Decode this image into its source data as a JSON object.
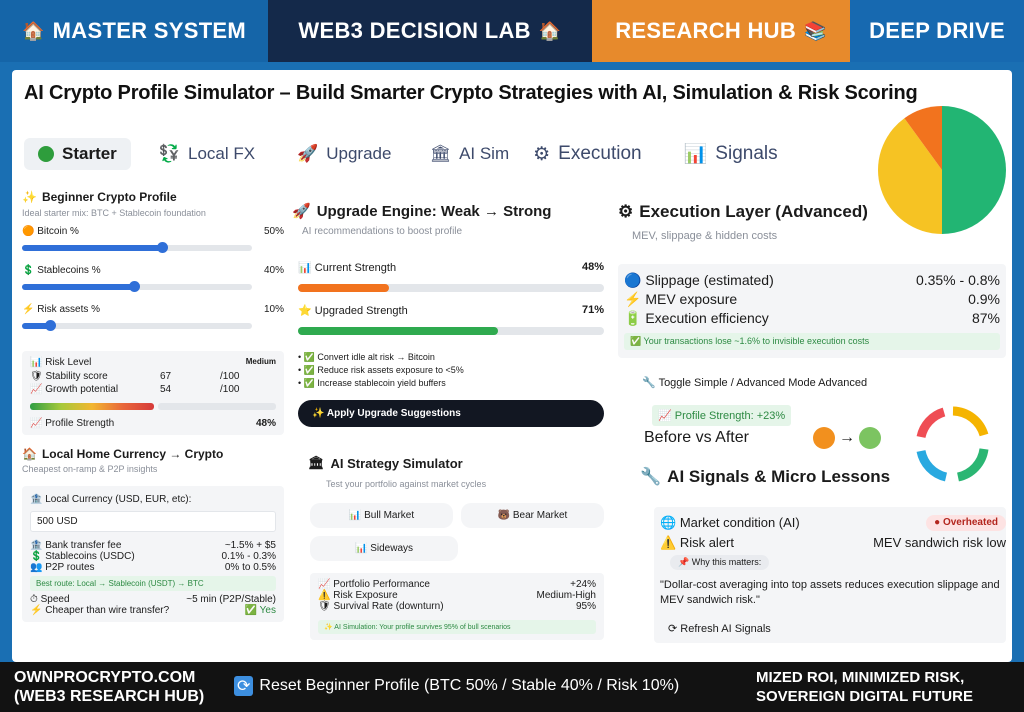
{
  "nav": {
    "tabs": [
      {
        "label": "MASTER SYSTEM",
        "icon": "home-icon"
      },
      {
        "label": "WEB3 DECISION LAB",
        "icon": "home-icon"
      },
      {
        "label": "RESEARCH HUB",
        "icon": "book-icon"
      },
      {
        "label": "DEEP DRIVE"
      }
    ],
    "colors": {
      "bg": "#0f2d4f",
      "active": "#e78a2c"
    }
  },
  "page": {
    "title": "AI Crypto Profile Simulator – Build Smarter Crypto Strategies with AI, Simulation & Risk Scoring"
  },
  "subtabs": [
    "Starter",
    "Local FX",
    "Upgrade",
    "AI Sim",
    "Execution",
    "Signals"
  ],
  "pie_chart": {
    "slices": [
      {
        "label": "Bitcoin %",
        "value": 50,
        "color": "#22b573"
      },
      {
        "label": "Stablecoins %",
        "value": 40,
        "color": "#f6c323"
      },
      {
        "label": "Risk assets %",
        "value": 10,
        "color": "#f2731e"
      }
    ]
  },
  "beginner": {
    "title": "Beginner Crypto Profile",
    "subtitle": "Ideal starter mix: BTC + Stablecoin foundation",
    "sliders": [
      {
        "label": "Bitcoin %",
        "value": "50%",
        "fraction": 0.5
      },
      {
        "label": "Stablecoins %",
        "value": "40%",
        "fraction": 0.4
      },
      {
        "label": "Risk assets %",
        "value": "10%",
        "fraction": 0.1
      }
    ],
    "risk": {
      "label": "Risk Level",
      "level": "Medium",
      "stability_label": "Stability score",
      "stability_value": "67",
      "stability_max": "/100",
      "growth_label": "Growth potential",
      "growth_value": "54",
      "growth_max": "/100",
      "meter_fraction": 0.52
    },
    "profile_strength_label": "Profile Strength",
    "profile_strength_value": "48%"
  },
  "local": {
    "title": "Local Home Currency → Crypto",
    "subtitle": "Cheapest on-ramp & P2P insights",
    "currency_label": "Local Currency (USD, EUR, etc):",
    "currency_value": "500 USD",
    "rows": [
      {
        "label": "Bank transfer fee",
        "value": "~1.5% + $5"
      },
      {
        "label": "Stablecoins (USDC)",
        "value": "0.1% - 0.3%"
      },
      {
        "label": "P2P routes",
        "value": "0% to 0.5%"
      }
    ],
    "route_note": "Best route: Local → Stablecoin (USDT) → BTC",
    "speed_label": "Speed",
    "speed_value": "~5 min (P2P/Stable)",
    "cheaper_label": "Cheaper than wire transfer?",
    "cheaper_value": "Yes"
  },
  "upgrade": {
    "title": "Upgrade Engine: Weak → Strong",
    "subtitle": "AI recommendations to boost profile",
    "current_label": "Current Strength",
    "current_value": "48%",
    "current_fraction": 0.48,
    "upgraded_label": "Upgraded Strength",
    "upgraded_value": "71%",
    "upgraded_fraction": 0.71,
    "checks": [
      "Convert idle alt risk → Bitcoin",
      "Reduce risk assets exposure to <5%",
      "Increase stablecoin yield buffers"
    ],
    "apply_button": "Apply Upgrade Suggestions"
  },
  "simulator": {
    "title": "AI Strategy Simulator",
    "subtitle": "Test your portfolio against market cycles",
    "buttons": [
      "Bull Market",
      "Bear Market",
      "Sideways"
    ],
    "results": [
      {
        "label": "Portfolio Performance",
        "value": "+24%"
      },
      {
        "label": "Risk Exposure",
        "value": "Medium-High"
      },
      {
        "label": "Survival Rate (downturn)",
        "value": "95%"
      }
    ],
    "note": "AI Simulation: Your profile survives 95% of bull scenarios"
  },
  "execution": {
    "title": "Execution Layer (Advanced)",
    "subtitle": "MEV, slippage & hidden costs",
    "rows": [
      {
        "label": "Slippage (estimated)",
        "value": "0.35% - 0.8%"
      },
      {
        "label": "MEV exposure",
        "value": "0.9%"
      },
      {
        "label": "Execution efficiency",
        "value": "87%"
      }
    ],
    "note": "Your transactions lose ~1.6% to invisible execution costs",
    "toggle_label": "Toggle Simple / Advanced Mode Advanced",
    "profile_strength": "Profile Strength: +23%",
    "before_after": "Before vs After"
  },
  "signals": {
    "title": "AI Signals & Micro Lessons",
    "market_label": "Market condition (AI)",
    "market_value": "Overheated",
    "risk_label": "Risk alert",
    "risk_value": "MEV sandwich risk low",
    "why_label": "Why this matters:",
    "lesson": "\"Dollar-cost averaging into top assets reduces execution slippage and MEV sandwich risk.\"",
    "refresh_button": "Refresh AI Signals"
  },
  "footer": {
    "left_line1": "OWNPROCRYPTO.COM",
    "left_line2": "(WEB3 RESEARCH HUB)",
    "reset_label": "Reset Beginner Profile (BTC 50% / Stable 40% / Risk 10%)",
    "right_line1": "MIZED ROI, MINIMIZED RISK,",
    "right_line2": "SOVEREIGN DIGITAL FUTURE"
  }
}
